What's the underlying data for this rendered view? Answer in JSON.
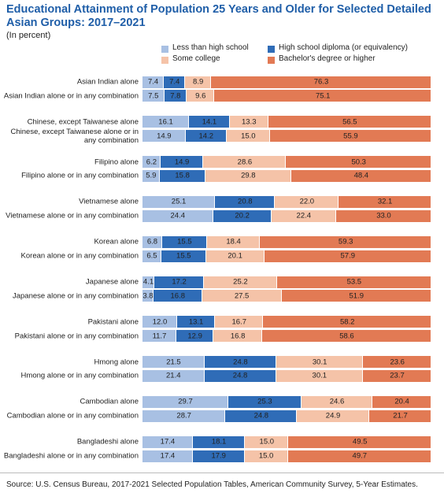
{
  "chart_data": {
    "type": "bar",
    "orientation": "horizontal",
    "stacked": true,
    "title": "Educational Attainment of Population 25 Years and Older for Selected Detailed Asian Groups: 2017–2021",
    "subtitle": "(In percent)",
    "source": "Source: U.S. Census Bureau, 2017-2021 Selected Population Tables, American Community Survey, 5-Year Estimates.",
    "xlim": [
      0,
      100
    ],
    "categories": [
      "Asian Indian alone",
      "Asian Indian alone or in any combination",
      "Chinese, except Taiwanese alone",
      "Chinese, except Taiwanese alone or in any combination",
      "Filipino alone",
      "Filipino alone or in any combination",
      "Vietnamese alone",
      "Vietnamese alone or in any combination",
      "Korean alone",
      "Korean alone or in any combination",
      "Japanese alone",
      "Japanese alone or in any combination",
      "Pakistani alone",
      "Pakistani alone or in any combination",
      "Hmong alone",
      "Hmong alone or in any combination",
      "Cambodian alone",
      "Cambodian alone or in any combination",
      "Bangladeshi alone",
      "Bangladeshi alone or in any combination"
    ],
    "series": [
      {
        "name": "Less than high school",
        "color": "#a8c0e3",
        "values": [
          7.4,
          7.5,
          16.1,
          14.9,
          6.2,
          5.9,
          25.1,
          24.4,
          6.8,
          6.5,
          4.1,
          3.8,
          12.0,
          11.7,
          21.5,
          21.4,
          29.7,
          28.7,
          17.4,
          17.4
        ],
        "value_labels": [
          "7.4",
          "7.5",
          "16.1",
          "14.9",
          "6.2",
          "5.9",
          "25.1",
          "24.4",
          "6.8",
          "6.5",
          "4.1",
          "3.8",
          "12.0",
          "11.7",
          "21.5",
          "21.4",
          "29.7",
          "28.7",
          "17.4",
          "17.4"
        ]
      },
      {
        "name": "High school diploma (or equivalency)",
        "color": "#2f6cb7",
        "values": [
          7.4,
          7.8,
          14.1,
          14.2,
          14.9,
          15.8,
          20.8,
          20.2,
          15.5,
          15.5,
          17.2,
          16.8,
          13.1,
          12.9,
          24.8,
          24.8,
          25.3,
          24.8,
          18.1,
          17.9
        ],
        "value_labels": [
          "7.4",
          "7.8",
          "14.1",
          "14.2",
          "14.9",
          "15.8",
          "20.8",
          "20.2",
          "15.5",
          "15.5",
          "17.2",
          "16.8",
          "13.1",
          "12.9",
          "24.8",
          "24.8",
          "25.3",
          "24.8",
          "18.1",
          "17.9"
        ]
      },
      {
        "name": "Some college",
        "color": "#f5c3a8",
        "values": [
          8.9,
          9.6,
          13.3,
          15.0,
          28.6,
          29.8,
          22.0,
          22.4,
          18.4,
          20.1,
          25.2,
          27.5,
          16.7,
          16.8,
          30.1,
          30.1,
          24.6,
          24.9,
          15.0,
          15.0
        ],
        "value_labels": [
          "8.9",
          "9.6",
          "13.3",
          "15.0",
          "28.6",
          "29.8",
          "22.0",
          "22.4",
          "18.4",
          "20.1",
          "25.2",
          "27.5",
          "16.7",
          "16.8",
          "30.1",
          "30.1",
          "24.6",
          "24.9",
          "15.0",
          "15.0"
        ]
      },
      {
        "name": "Bachelor's degree or higher",
        "color": "#e27a54",
        "values": [
          76.3,
          75.1,
          56.5,
          55.9,
          50.3,
          48.4,
          32.1,
          33.0,
          59.3,
          57.9,
          53.5,
          51.9,
          58.2,
          58.6,
          23.6,
          23.7,
          20.4,
          21.7,
          49.5,
          49.7
        ],
        "value_labels": [
          "76.3",
          "75.1",
          "56.5",
          "55.9",
          "50.3",
          "48.4",
          "32.1",
          "33.0",
          "59.3",
          "57.9",
          "53.5",
          "51.9",
          "58.2",
          "58.6",
          "23.6",
          "23.7",
          "20.4",
          "21.7",
          "49.5",
          "49.7"
        ]
      }
    ]
  }
}
